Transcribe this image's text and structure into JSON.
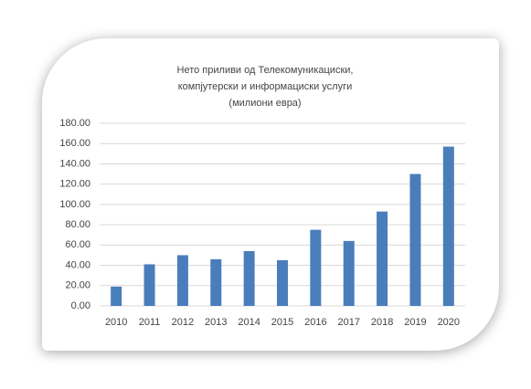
{
  "chart_data": {
    "type": "bar",
    "title": [
      "Нето приливи од Телекомуникациски,",
      "компјутерски и информациски услуги",
      "(милиони евра)"
    ],
    "categories": [
      "2010",
      "2011",
      "2012",
      "2013",
      "2014",
      "2015",
      "2016",
      "2017",
      "2018",
      "2019",
      "2020"
    ],
    "values": [
      19,
      41,
      50,
      46,
      54,
      45,
      75,
      64,
      93,
      130,
      157
    ],
    "color": "#4a7ebb",
    "ylim": [
      0,
      180
    ],
    "yticks": [
      {
        "value": 0,
        "label": "0.00"
      },
      {
        "value": 20,
        "label": "20.00"
      },
      {
        "value": 40,
        "label": "40.00"
      },
      {
        "value": 60,
        "label": "60.00"
      },
      {
        "value": 80,
        "label": "80.00"
      },
      {
        "value": 100,
        "label": "100.00"
      },
      {
        "value": 120,
        "label": "120.00"
      },
      {
        "value": 140,
        "label": "140.00"
      },
      {
        "value": 160,
        "label": "160.00"
      },
      {
        "value": 180,
        "label": "180.00"
      }
    ],
    "grid": true
  }
}
